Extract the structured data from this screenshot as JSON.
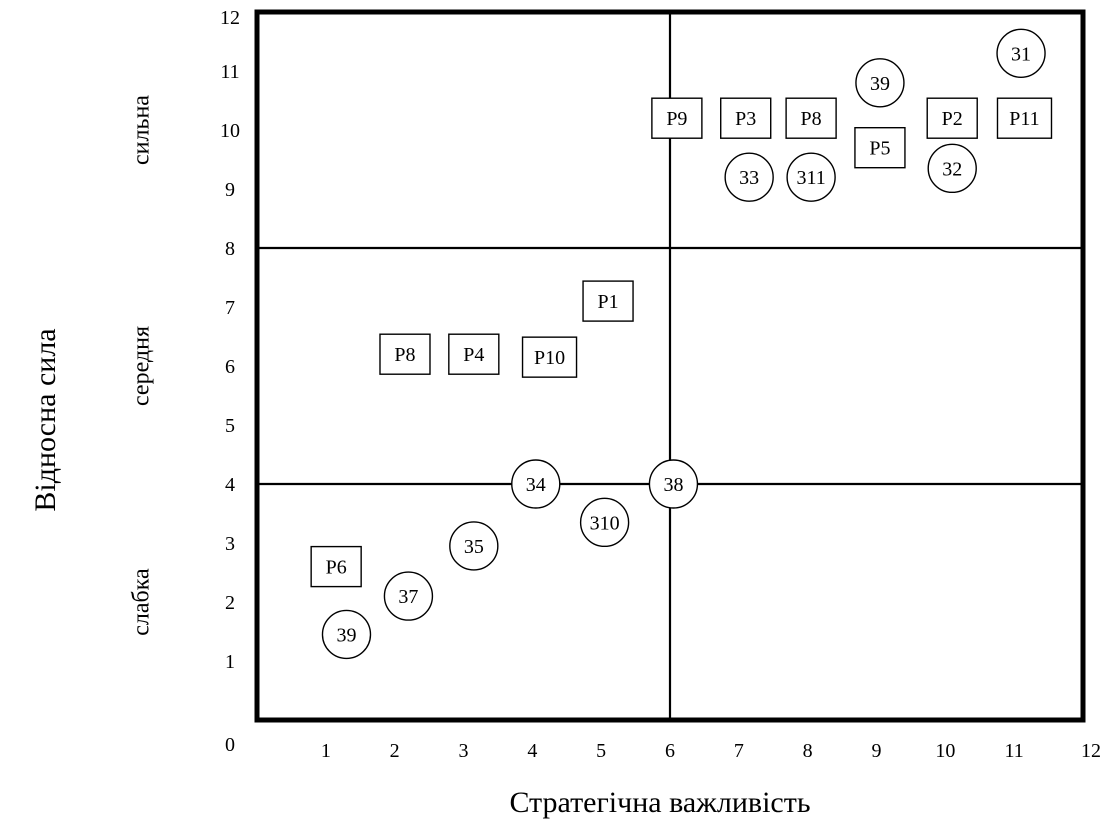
{
  "chart_data": {
    "type": "scatter",
    "xlabel": "Стратегічна важливість",
    "ylabel": "Відносна сила",
    "xlim": [
      0,
      12
    ],
    "ylim": [
      0,
      12
    ],
    "x_ticks": [
      "1",
      "2",
      "3",
      "4",
      "5",
      "6",
      "7",
      "8",
      "9",
      "10",
      "11",
      "12"
    ],
    "y_ticks": [
      "0",
      "1",
      "2",
      "3",
      "4",
      "5",
      "6",
      "7",
      "8",
      "9",
      "10",
      "11",
      "12"
    ],
    "dividers": {
      "x": [
        6
      ],
      "y": [
        4,
        8
      ]
    },
    "bands": [
      {
        "label": "сильна",
        "y": 10
      },
      {
        "label": "середня",
        "y": 6
      },
      {
        "label": "слабка",
        "y": 2
      }
    ],
    "series": [
      {
        "marker": "square",
        "points": [
          {
            "label": "P9",
            "x": 6.1,
            "y": 10.2
          },
          {
            "label": "P3",
            "x": 7.1,
            "y": 10.2
          },
          {
            "label": "P8",
            "x": 8.05,
            "y": 10.2
          },
          {
            "label": "P2",
            "x": 10.1,
            "y": 10.2
          },
          {
            "label": "P11",
            "x": 11.15,
            "y": 10.2
          },
          {
            "label": "P5",
            "x": 9.05,
            "y": 9.7
          },
          {
            "label": "P1",
            "x": 5.1,
            "y": 7.1
          },
          {
            "label": "P8",
            "x": 2.15,
            "y": 6.2
          },
          {
            "label": "P4",
            "x": 3.15,
            "y": 6.2
          },
          {
            "label": "P10",
            "x": 4.25,
            "y": 6.15
          },
          {
            "label": "P6",
            "x": 1.15,
            "y": 2.6
          }
        ]
      },
      {
        "marker": "circle",
        "points": [
          {
            "label": "31",
            "x": 11.1,
            "y": 11.3
          },
          {
            "label": "39",
            "x": 9.05,
            "y": 10.8
          },
          {
            "label": "33",
            "x": 7.15,
            "y": 9.2
          },
          {
            "label": "311",
            "x": 8.05,
            "y": 9.2
          },
          {
            "label": "32",
            "x": 10.1,
            "y": 9.35
          },
          {
            "label": "34",
            "x": 4.05,
            "y": 4.0
          },
          {
            "label": "38",
            "x": 6.05,
            "y": 4.0
          },
          {
            "label": "310",
            "x": 5.05,
            "y": 3.35
          },
          {
            "label": "35",
            "x": 3.15,
            "y": 2.95
          },
          {
            "label": "37",
            "x": 2.2,
            "y": 2.1
          },
          {
            "label": "39",
            "x": 1.3,
            "y": 1.45
          }
        ]
      }
    ]
  }
}
